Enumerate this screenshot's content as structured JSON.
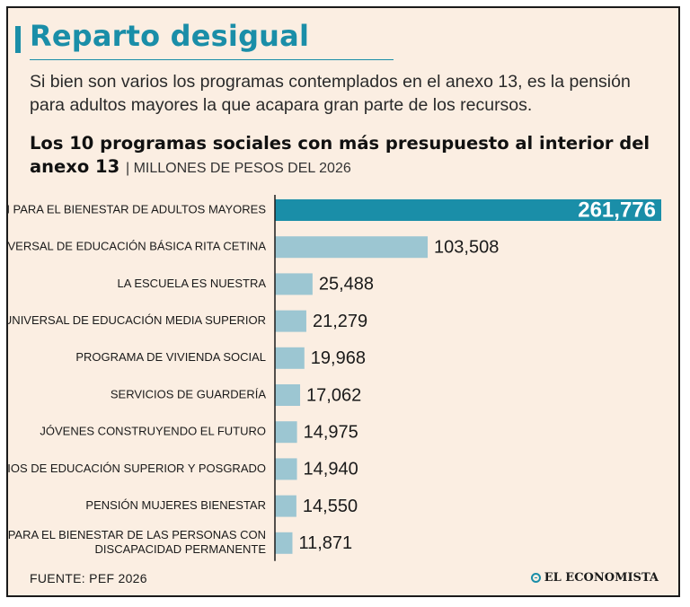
{
  "headline": "Reparto desigual",
  "intro": "Si bien son varios los programas contemplados en el anexo 13, es la pensión para adultos mayores la que acapara gran parte de los recursos.",
  "chart_data": {
    "type": "bar",
    "orientation": "horizontal",
    "title": "Los 10 programas sociales con más presupuesto al interior del anexo 13",
    "subtitle": "| MILLONES DE PESOS DEL 2026",
    "categories": [
      [
        "PENSIÓN PARA EL BIENESTAR DE ADULTOS MAYORES"
      ],
      [
        "BECA UNIVERSAL DE EDUCACIÓN BÁSICA RITA CETINA"
      ],
      [
        "LA ESCUELA ES NUESTRA"
      ],
      [
        "BECA UNIVERSAL DE EDUCACIÓN MEDIA SUPERIOR"
      ],
      [
        "PROGRAMA DE VIVIENDA SOCIAL"
      ],
      [
        "SERVICIOS DE GUARDERÍA"
      ],
      [
        "JÓVENES CONSTRUYENDO EL FUTURO"
      ],
      [
        "SERVICIOS DE EDUCACIÓN SUPERIOR Y POSGRADO"
      ],
      [
        "PENSIÓN MUJERES BIENESTAR"
      ],
      [
        "PENSIÓN PARA EL BIENESTAR DE LAS PERSONAS CON",
        "DISCAPACIDAD PERMANENTE"
      ]
    ],
    "values": [
      261776,
      103508,
      25488,
      21279,
      19968,
      17062,
      14975,
      14940,
      14550,
      11871
    ],
    "value_labels": [
      "261,776",
      "103,508",
      "25,488",
      "21,279",
      "19,968",
      "17,062",
      "14,975",
      "14,940",
      "14,550",
      "11,871"
    ],
    "xlim": [
      0,
      261776
    ],
    "colors": {
      "highlight": "#1a8ea8",
      "bar": "#9cc6d2",
      "axis": "#1a1a1a"
    },
    "grid": false
  },
  "source": "FUENTE: PEF 2026",
  "logo": {
    "icon": "el-economista-logo-icon",
    "text": "EL ECONOMISTA"
  }
}
